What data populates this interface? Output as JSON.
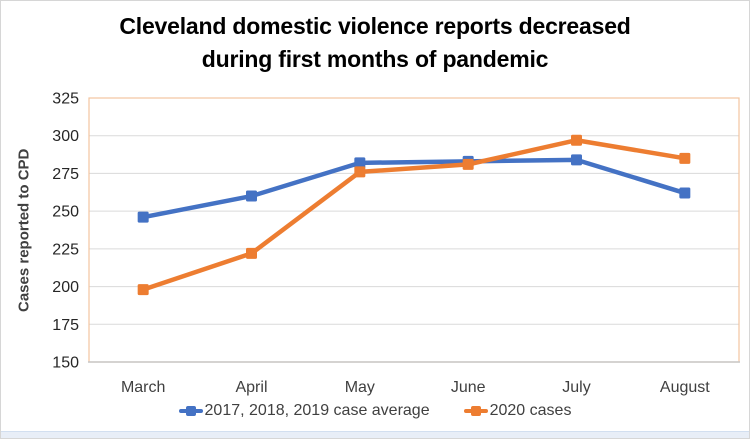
{
  "title_lines": [
    "Cleveland domestic violence reports decreased",
    "during first months of pandemic"
  ],
  "y_axis_title": "Cases reported to CPD",
  "chart_data": {
    "type": "line",
    "title": "Cleveland domestic violence reports decreased during first months of pandemic",
    "xlabel": "",
    "ylabel": "Cases reported to CPD",
    "categories": [
      "March",
      "April",
      "May",
      "June",
      "July",
      "August"
    ],
    "series": [
      {
        "name": "2017, 2018, 2019 case average",
        "color": "#4472C4",
        "marker": "square",
        "values": [
          246,
          260,
          282,
          283,
          284,
          262
        ]
      },
      {
        "name": "2020 cases",
        "color": "#ED7D31",
        "marker": "square",
        "values": [
          198,
          222,
          276,
          281,
          297,
          285
        ]
      }
    ],
    "ylim": [
      150,
      325
    ],
    "yticks": [
      150,
      175,
      200,
      225,
      250,
      275,
      300,
      325
    ],
    "grid": true,
    "legend_position": "bottom"
  },
  "colors": {
    "series_blue": "#4472C4",
    "series_orange": "#ED7D31",
    "gridline": "#dadada",
    "plot_border": "#f2c5a0",
    "axis_line": "#c8c8c8",
    "tick_label": "#262626",
    "category_label": "#404040",
    "axis_title": "#404040",
    "title": "#000000",
    "outer_border": "#d6d6d6",
    "bottom_strip": "#e8eef7"
  }
}
